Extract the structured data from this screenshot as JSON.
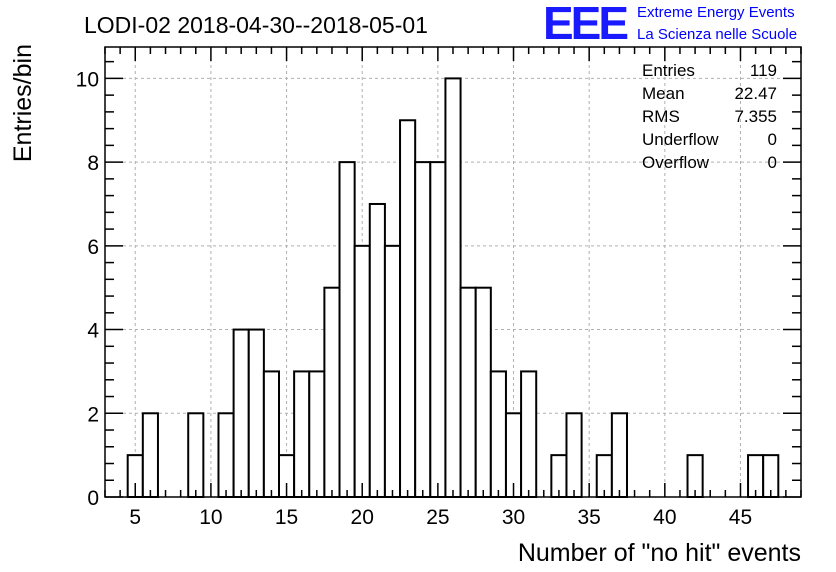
{
  "chart_data": {
    "type": "bar",
    "title": "LODI-02 2018-04-30--2018-05-01",
    "xlabel": "Number of \"no hit\" events",
    "ylabel": "Entries/bin",
    "xlim": [
      3,
      49
    ],
    "ylim": [
      0,
      10.75
    ],
    "bin_width": 1,
    "x_major_ticks": [
      5,
      10,
      15,
      20,
      25,
      30,
      35,
      40,
      45
    ],
    "y_major_ticks": [
      0,
      2,
      4,
      6,
      8,
      10
    ],
    "grid": true,
    "bins": [
      {
        "x": 5,
        "value": 1
      },
      {
        "x": 6,
        "value": 2
      },
      {
        "x": 7,
        "value": 0
      },
      {
        "x": 8,
        "value": 0
      },
      {
        "x": 9,
        "value": 2
      },
      {
        "x": 10,
        "value": 0
      },
      {
        "x": 11,
        "value": 2
      },
      {
        "x": 12,
        "value": 4
      },
      {
        "x": 13,
        "value": 4
      },
      {
        "x": 14,
        "value": 3
      },
      {
        "x": 15,
        "value": 1
      },
      {
        "x": 16,
        "value": 3
      },
      {
        "x": 17,
        "value": 3
      },
      {
        "x": 18,
        "value": 5
      },
      {
        "x": 19,
        "value": 8
      },
      {
        "x": 20,
        "value": 6
      },
      {
        "x": 21,
        "value": 7
      },
      {
        "x": 22,
        "value": 6
      },
      {
        "x": 23,
        "value": 9
      },
      {
        "x": 24,
        "value": 8
      },
      {
        "x": 25,
        "value": 8
      },
      {
        "x": 26,
        "value": 10
      },
      {
        "x": 27,
        "value": 5
      },
      {
        "x": 28,
        "value": 5
      },
      {
        "x": 29,
        "value": 3
      },
      {
        "x": 30,
        "value": 2
      },
      {
        "x": 31,
        "value": 3
      },
      {
        "x": 32,
        "value": 0
      },
      {
        "x": 33,
        "value": 1
      },
      {
        "x": 34,
        "value": 2
      },
      {
        "x": 35,
        "value": 0
      },
      {
        "x": 36,
        "value": 1
      },
      {
        "x": 37,
        "value": 2
      },
      {
        "x": 38,
        "value": 0
      },
      {
        "x": 39,
        "value": 0
      },
      {
        "x": 40,
        "value": 0
      },
      {
        "x": 41,
        "value": 0
      },
      {
        "x": 42,
        "value": 1
      },
      {
        "x": 43,
        "value": 0
      },
      {
        "x": 44,
        "value": 0
      },
      {
        "x": 45,
        "value": 0
      },
      {
        "x": 46,
        "value": 1
      },
      {
        "x": 47,
        "value": 1
      }
    ],
    "stats": [
      {
        "label": "Entries",
        "value": "119"
      },
      {
        "label": "Mean",
        "value": "22.47"
      },
      {
        "label": "RMS",
        "value": "7.355"
      },
      {
        "label": "Underflow",
        "value": "0"
      },
      {
        "label": "Overflow",
        "value": "0"
      }
    ],
    "legend_position": "top-right"
  },
  "logo": {
    "letters": "EEE",
    "line1": "Extreme Energy Events",
    "line2": "La Scienza nelle Scuole",
    "color": "#0000ff"
  }
}
